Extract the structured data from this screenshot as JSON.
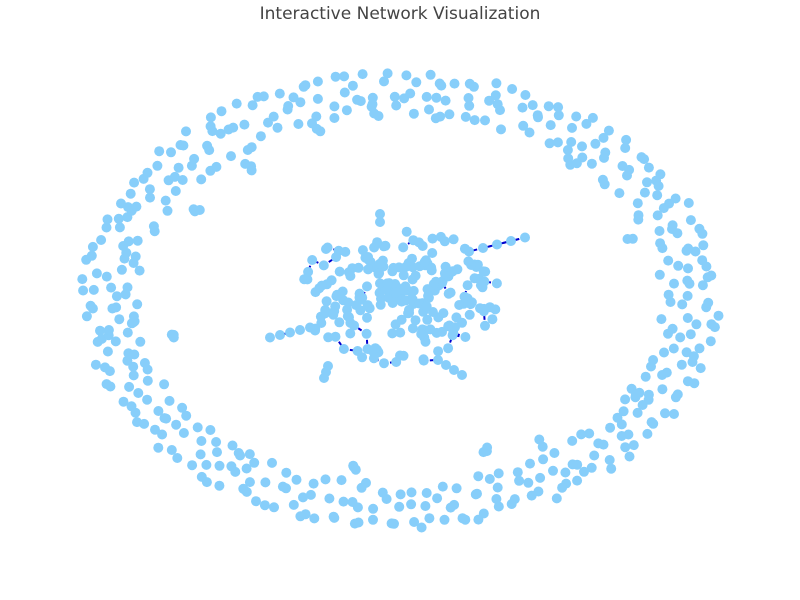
{
  "page": {
    "title": "Interactive Network Visualization"
  },
  "style": {
    "node_color": "#87cefa",
    "edge_color": "#0000cd",
    "background": "#ffffff"
  }
}
